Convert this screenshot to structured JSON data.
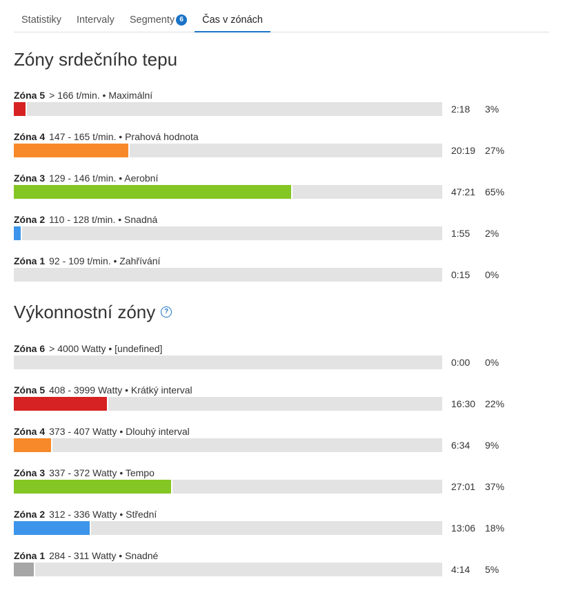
{
  "tabs": [
    {
      "label": "Statistiky"
    },
    {
      "label": "Intervaly"
    },
    {
      "label": "Segmenty",
      "badge": "6"
    },
    {
      "label": "Čas v zónách",
      "active": true
    }
  ],
  "hr_section": {
    "title": "Zóny srdečního tepu",
    "zones": [
      {
        "name": "Zóna 5",
        "range": "> 166 t/min. • Maximální",
        "time": "2:18",
        "percent": "3%",
        "fraction": 0.03,
        "color": "#d62222"
      },
      {
        "name": "Zóna 4",
        "range": "147 - 165 t/min. • Prahová hodnota",
        "time": "20:19",
        "percent": "27%",
        "fraction": 0.27,
        "color": "#f7892b"
      },
      {
        "name": "Zóna 3",
        "range": "129 - 146 t/min. • Aerobní",
        "time": "47:21",
        "percent": "65%",
        "fraction": 0.65,
        "color": "#84c624"
      },
      {
        "name": "Zóna 2",
        "range": "110 - 128 t/min. • Snadná",
        "time": "1:55",
        "percent": "2%",
        "fraction": 0.02,
        "color": "#3c95ea"
      },
      {
        "name": "Zóna 1",
        "range": "92 - 109 t/min. • Zahřívání",
        "time": "0:15",
        "percent": "0%",
        "fraction": 0.0,
        "color": "#a6a6a6"
      }
    ]
  },
  "power_section": {
    "title": "Výkonnostní zóny",
    "help_icon": "question-circle-icon",
    "zones": [
      {
        "name": "Zóna 6",
        "range": "> 4000 Watty • [undefined]",
        "time": "0:00",
        "percent": "0%",
        "fraction": 0.0,
        "color": "#a6a6a6"
      },
      {
        "name": "Zóna 5",
        "range": "408 - 3999 Watty • Krátký interval",
        "time": "16:30",
        "percent": "22%",
        "fraction": 0.22,
        "color": "#d62222"
      },
      {
        "name": "Zóna 4",
        "range": "373 - 407 Watty • Dlouhý interval",
        "time": "6:34",
        "percent": "9%",
        "fraction": 0.09,
        "color": "#f7892b"
      },
      {
        "name": "Zóna 3",
        "range": "337 - 372 Watty • Tempo",
        "time": "27:01",
        "percent": "37%",
        "fraction": 0.37,
        "color": "#84c624"
      },
      {
        "name": "Zóna 2",
        "range": "312 - 336 Watty • Střední",
        "time": "13:06",
        "percent": "18%",
        "fraction": 0.18,
        "color": "#3c95ea"
      },
      {
        "name": "Zóna 1",
        "range": "284 - 311 Watty • Snadné",
        "time": "4:14",
        "percent": "5%",
        "fraction": 0.05,
        "color": "#a6a6a6"
      }
    ]
  }
}
